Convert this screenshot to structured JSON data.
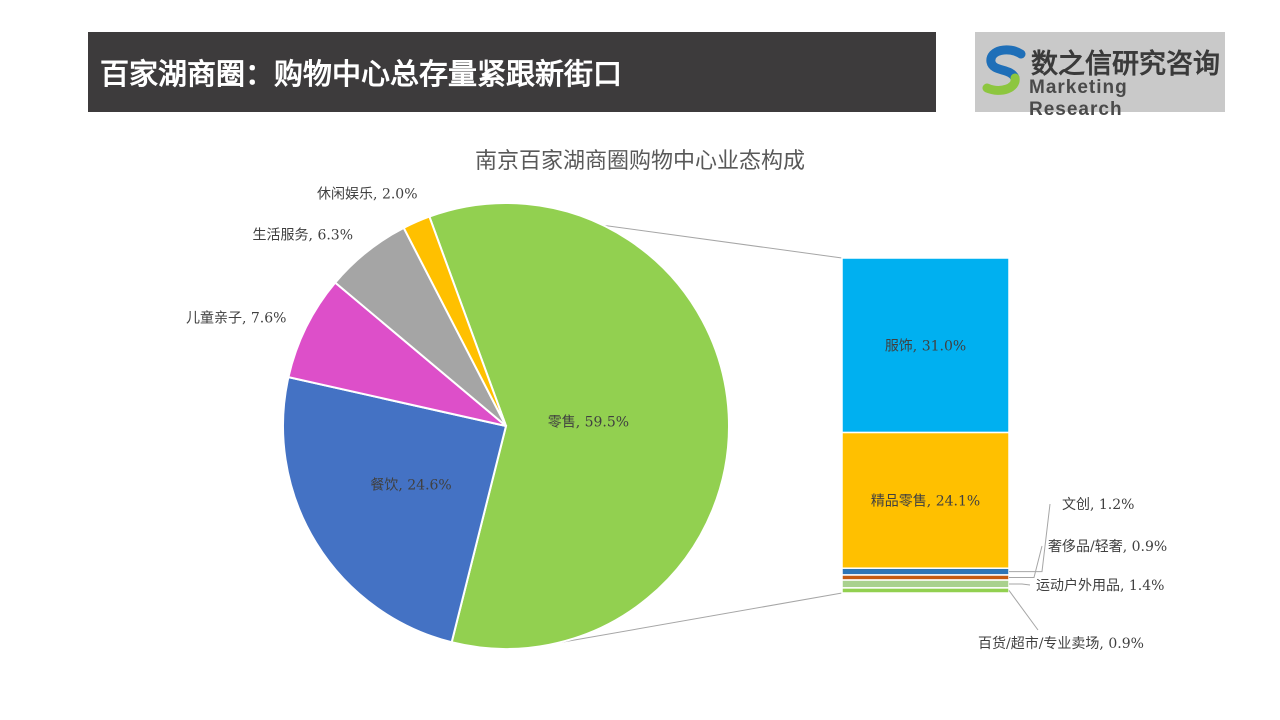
{
  "header": {
    "title": "百家湖商圈：购物中心总存量紧跟新街口"
  },
  "logo": {
    "cn_text": "数之信研究咨询",
    "en_text": "Marketing Research",
    "colors": {
      "blue": "#1f6fb8",
      "green": "#8dc63f"
    }
  },
  "chart_data": {
    "type": "pie",
    "title": "南京百家湖商圈购物中心业态构成",
    "pie": [
      {
        "label": "零售",
        "value": 59.5,
        "display": "零售, 59.5%",
        "color": "#92d050"
      },
      {
        "label": "餐饮",
        "value": 24.6,
        "display": "餐饮, 24.6%",
        "color": "#4472c4"
      },
      {
        "label": "儿童亲子",
        "value": 7.6,
        "display": "儿童亲子, 7.6%",
        "color": "#dd4fc9"
      },
      {
        "label": "生活服务",
        "value": 6.3,
        "display": "生活服务, 6.3%",
        "color": "#a5a5a5"
      },
      {
        "label": "休闲娱乐",
        "value": 2.0,
        "display": "休闲娱乐, 2.0%",
        "color": "#ffc000"
      }
    ],
    "breakdown_of": "零售",
    "bar": [
      {
        "label": "服饰",
        "value": 31.0,
        "display": "服饰, 31.0%",
        "color": "#00b0f0"
      },
      {
        "label": "精品零售",
        "value": 24.1,
        "display": "精品零售, 24.1%",
        "color": "#ffc000"
      },
      {
        "label": "文创",
        "value": 1.2,
        "display": "文创, 1.2%",
        "color": "#2e75b6"
      },
      {
        "label": "奢侈品/轻奢",
        "value": 0.9,
        "display": "奢侈品/轻奢, 0.9%",
        "color": "#c55a11"
      },
      {
        "label": "运动户外用品",
        "value": 1.4,
        "display": "运动户外用品, 1.4%",
        "color": "#a9d18e"
      },
      {
        "label": "百货/超市/专业卖场",
        "value": 0.9,
        "display": "百货/超市/专业卖场, 0.9%",
        "color": "#92d050"
      }
    ]
  }
}
